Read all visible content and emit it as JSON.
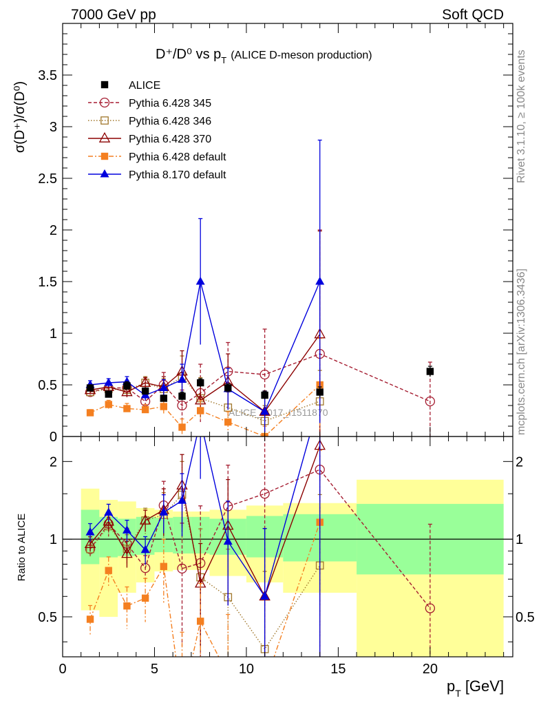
{
  "header": {
    "left": "7000 GeV pp",
    "right": "Soft QCD",
    "title_main": "D⁺/D⁰ vs p",
    "title_sub": "T",
    "title_paren": "(ALICE D-meson production)",
    "side_top": "Rivet 3.1.10, ≥ 100k events",
    "side_bottom": "mcplots.cern.ch [arXiv:1306.3436]",
    "watermark": "ALICE_2017_I1511870"
  },
  "axes": {
    "ylabel_top": "σ(D⁺)/σ(D⁰)",
    "ylabel_bottom": "Ratio to ALICE",
    "xlabel": "p",
    "xlabel_sub": "T",
    "xlabel_unit": "[GeV]",
    "top_ticks": [
      "0",
      "0.5",
      "1",
      "1.5",
      "2",
      "2.5",
      "3",
      "3.5"
    ],
    "bottom_ticks": [
      "0.5",
      "1",
      "2"
    ],
    "x_ticks": [
      "0",
      "5",
      "10",
      "15",
      "20"
    ]
  },
  "colors": {
    "alice": "#000000",
    "py345": "#a51c30",
    "py346": "#a0762a",
    "py370": "#8b0000",
    "pydef": "#f47f20",
    "py8": "#0000dd",
    "band_inner": "#99ff99",
    "band_outer": "#ffff99"
  },
  "chart_data": {
    "type": "line",
    "xlim": [
      0,
      24.5
    ],
    "ylim_top": [
      0,
      4.0
    ],
    "ylim_bottom_log": [
      0.35,
      2.5
    ],
    "legend_position": "top-left",
    "series": [
      {
        "name": "ALICE",
        "style": "square-filled",
        "points": [
          [
            1.5,
            0.47
          ],
          [
            2.5,
            0.41
          ],
          [
            3.5,
            0.49
          ],
          [
            4.5,
            0.44
          ],
          [
            5.5,
            0.37
          ],
          [
            6.5,
            0.39
          ],
          [
            7.5,
            0.52
          ],
          [
            9,
            0.47
          ],
          [
            11,
            0.4
          ],
          [
            14,
            0.43
          ],
          [
            20,
            0.63
          ]
        ],
        "yerr": [
          0.03,
          0.03,
          0.04,
          0.03,
          0.03,
          0.04,
          0.04,
          0.04,
          0.04,
          0.05,
          0.05
        ]
      },
      {
        "name": "Pythia 6.428 345",
        "style": "circle-open-dashed",
        "points": [
          [
            1.5,
            0.43
          ],
          [
            2.5,
            0.47
          ],
          [
            3.5,
            0.47
          ],
          [
            4.5,
            0.34
          ],
          [
            5.5,
            0.5
          ],
          [
            6.5,
            0.3
          ],
          [
            7.5,
            0.42
          ],
          [
            9,
            0.63
          ],
          [
            11,
            0.6
          ],
          [
            14,
            0.8
          ],
          [
            20,
            0.34
          ]
        ],
        "yerr": [
          0.03,
          0.05,
          0.07,
          0.04,
          0.12,
          0.15,
          0.28,
          0.28,
          0.44,
          1.2,
          0.38
        ]
      },
      {
        "name": "Pythia 6.428 346",
        "style": "square-open-dotted",
        "points": [
          [
            1.5,
            0.43
          ],
          [
            2.5,
            0.46
          ],
          [
            3.5,
            0.45
          ],
          [
            4.5,
            0.52
          ],
          [
            5.5,
            0.46
          ],
          [
            6.5,
            0.58
          ],
          [
            7.5,
            0.37
          ],
          [
            9,
            0.28
          ],
          [
            11,
            0.15
          ],
          [
            14,
            0.34
          ]
        ],
        "yerr": [
          0.03,
          0.04,
          0.06,
          0.06,
          0.1,
          0.2,
          0.2,
          0.15,
          0.15,
          0.3
        ]
      },
      {
        "name": "Pythia 6.428 370",
        "style": "triangle-open-solid",
        "points": [
          [
            1.5,
            0.45
          ],
          [
            2.5,
            0.48
          ],
          [
            3.5,
            0.43
          ],
          [
            4.5,
            0.52
          ],
          [
            5.5,
            0.48
          ],
          [
            6.5,
            0.63
          ],
          [
            7.5,
            0.35
          ],
          [
            9,
            0.53
          ],
          [
            11,
            0.24
          ],
          [
            14,
            0.99
          ]
        ],
        "yerr": [
          0.03,
          0.04,
          0.05,
          0.05,
          0.1,
          0.2,
          0.15,
          0.27,
          0.2,
          1.0
        ]
      },
      {
        "name": "Pythia 6.428 default",
        "style": "square-filled-dashdot",
        "points": [
          [
            1.5,
            0.23
          ],
          [
            2.5,
            0.31
          ],
          [
            3.5,
            0.27
          ],
          [
            4.5,
            0.26
          ],
          [
            5.5,
            0.29
          ],
          [
            6.5,
            0.09
          ],
          [
            7.5,
            0.25
          ],
          [
            9,
            0.14
          ],
          [
            11,
            0.0
          ],
          [
            14,
            0.5
          ]
        ],
        "yerr": [
          0.03,
          0.04,
          0.05,
          0.05,
          0.08,
          0.08,
          0.1,
          0.1,
          0.1,
          0.45
        ]
      },
      {
        "name": "Pythia 8.170 default",
        "style": "triangle-filled-solid",
        "points": [
          [
            1.5,
            0.5
          ],
          [
            2.5,
            0.52
          ],
          [
            3.5,
            0.53
          ],
          [
            4.5,
            0.4
          ],
          [
            5.5,
            0.47
          ],
          [
            6.5,
            0.55
          ],
          [
            7.5,
            1.5
          ],
          [
            9,
            0.46
          ],
          [
            11,
            0.24
          ],
          [
            14,
            1.5
          ]
        ],
        "yerr": [
          0.04,
          0.04,
          0.05,
          0.05,
          0.08,
          0.15,
          0.61,
          0.2,
          0.2,
          1.37
        ]
      }
    ],
    "ratio_bands": [
      {
        "x": [
          1,
          2
        ],
        "inner": [
          0.8,
          1.3
        ],
        "outer": [
          0.53,
          1.57
        ]
      },
      {
        "x": [
          2,
          3
        ],
        "inner": [
          0.85,
          1.22
        ],
        "outer": [
          0.5,
          1.42
        ]
      },
      {
        "x": [
          3,
          4
        ],
        "inner": [
          0.86,
          1.2
        ],
        "outer": [
          0.62,
          1.4
        ]
      },
      {
        "x": [
          4,
          5
        ],
        "inner": [
          0.87,
          1.22
        ],
        "outer": [
          0.68,
          1.32
        ]
      },
      {
        "x": [
          5,
          6
        ],
        "inner": [
          0.89,
          1.21
        ],
        "outer": [
          0.75,
          1.3
        ]
      },
      {
        "x": [
          6,
          7
        ],
        "inner": [
          0.88,
          1.22
        ],
        "outer": [
          0.76,
          1.28
        ]
      },
      {
        "x": [
          7,
          8
        ],
        "inner": [
          0.88,
          1.22
        ],
        "outer": [
          0.76,
          1.28
        ]
      },
      {
        "x": [
          8,
          10
        ],
        "inner": [
          0.87,
          1.2
        ],
        "outer": [
          0.72,
          1.3
        ]
      },
      {
        "x": [
          10,
          12
        ],
        "inner": [
          0.85,
          1.23
        ],
        "outer": [
          0.68,
          1.35
        ]
      },
      {
        "x": [
          12,
          16
        ],
        "inner": [
          0.82,
          1.25
        ],
        "outer": [
          0.62,
          1.38
        ]
      },
      {
        "x": [
          16,
          24
        ],
        "inner": [
          0.73,
          1.37
        ],
        "outer": [
          0.3,
          1.7
        ]
      }
    ]
  }
}
